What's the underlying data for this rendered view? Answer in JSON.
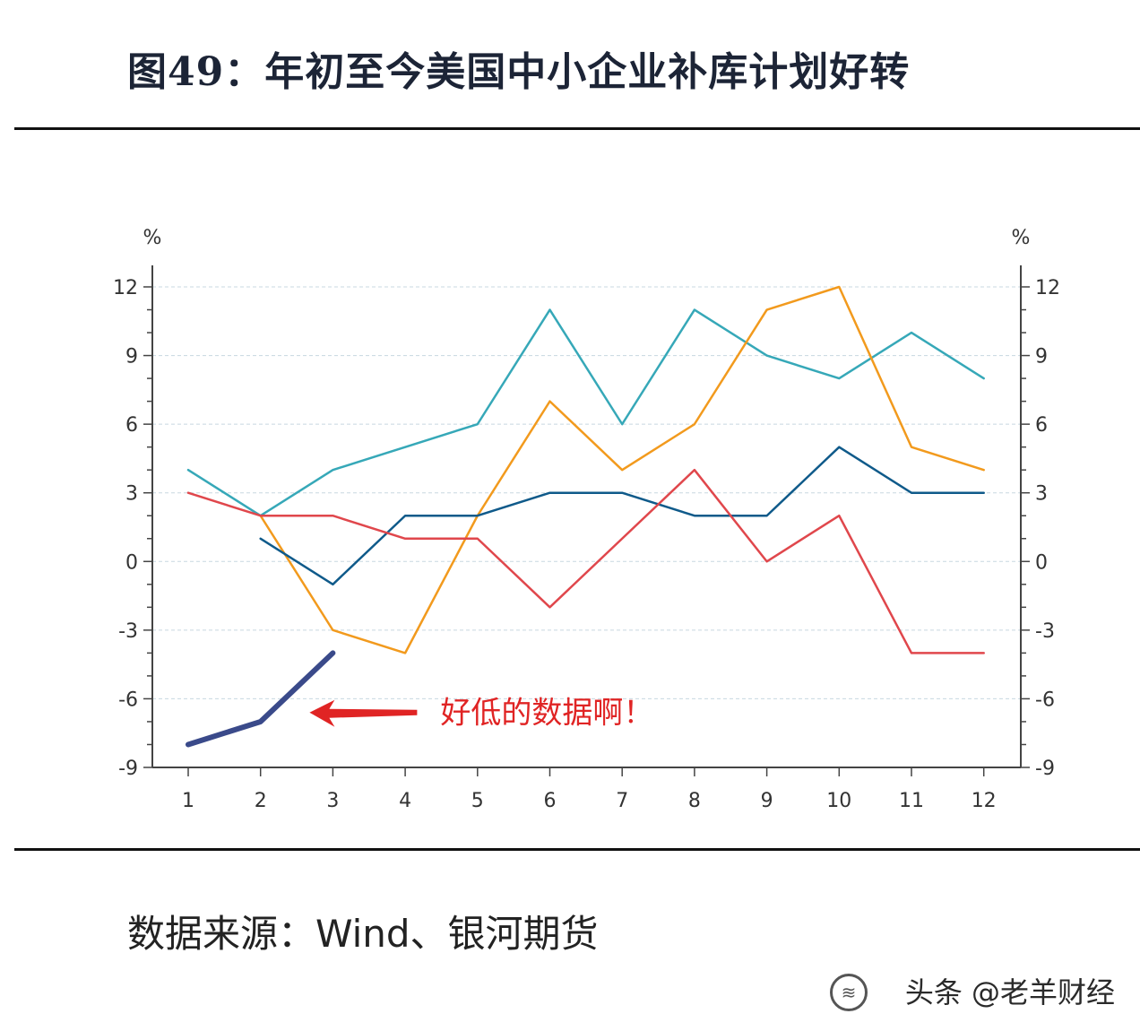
{
  "title": "图49：年初至今美国中小企业补库计划好转",
  "source": "数据来源：Wind、银河期货",
  "watermark": "头条 @老羊财经",
  "colors": {
    "teal": "#36a8b8",
    "orange": "#f29a1d",
    "navy": "#0f5a8a",
    "red": "#e0474c",
    "dark_blue": "#3a4a8a",
    "annotation": "#e02424",
    "grid": "#c8d8e0",
    "axis": "#444444"
  },
  "chart_data": {
    "type": "line",
    "x": [
      1,
      2,
      3,
      4,
      5,
      6,
      7,
      8,
      9,
      10,
      11,
      12
    ],
    "left_axis": {
      "unit": "%",
      "ylim": [
        -9,
        12
      ],
      "ticks": [
        12,
        9,
        6,
        3,
        0,
        -3,
        -6,
        -9
      ]
    },
    "right_axis": {
      "unit": "%",
      "ylim": [
        -9,
        12
      ],
      "ticks": [
        12,
        9,
        6,
        3,
        0,
        -3,
        -6,
        -9
      ]
    },
    "grid": true,
    "series": [
      {
        "name": "teal",
        "color": "#36a8b8",
        "width": 2.5,
        "values": [
          4,
          2,
          4,
          5,
          6,
          11,
          6,
          11,
          9,
          8,
          10,
          8
        ]
      },
      {
        "name": "orange",
        "color": "#f29a1d",
        "width": 2.5,
        "values": [
          null,
          2,
          -3,
          -4,
          2,
          7,
          4,
          6,
          11,
          12,
          5,
          4
        ]
      },
      {
        "name": "navy",
        "color": "#0f5a8a",
        "width": 2.5,
        "values": [
          null,
          1,
          -1,
          2,
          2,
          3,
          3,
          2,
          2,
          5,
          3,
          3
        ]
      },
      {
        "name": "red",
        "color": "#e0474c",
        "width": 2.5,
        "values": [
          3,
          2,
          2,
          1,
          1,
          -2,
          1,
          4,
          0,
          2,
          -4,
          -4
        ]
      },
      {
        "name": "dark_blue",
        "color": "#3a4a8a",
        "width": 6,
        "values": [
          -8,
          -7,
          -4,
          null,
          null,
          null,
          null,
          null,
          null,
          null,
          null,
          null
        ]
      }
    ],
    "annotation": {
      "text": "好低的数据啊！",
      "arrow_x": 3.0,
      "arrow_y": -6.6
    }
  }
}
